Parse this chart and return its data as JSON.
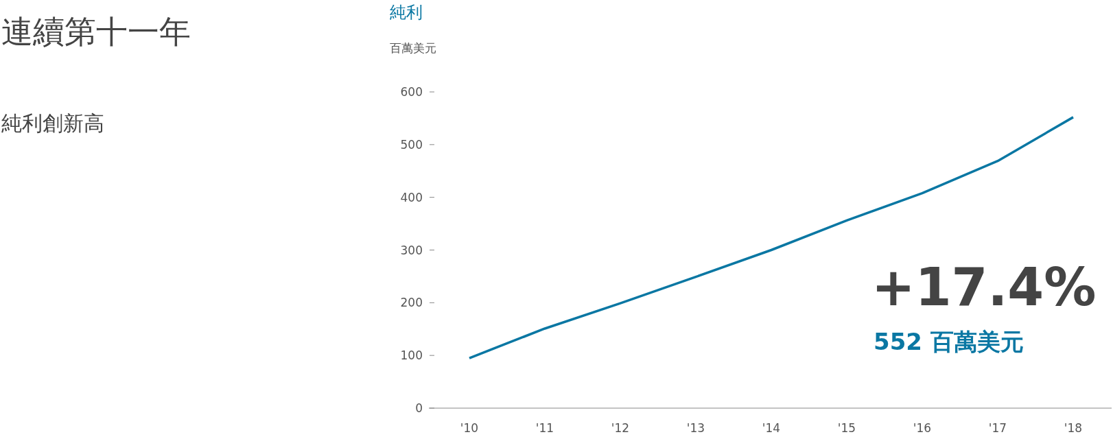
{
  "chart_data": {
    "type": "line",
    "title": "連續第十一年",
    "subtitle": "純利創新高",
    "ylabel": "百萬美元",
    "annotations": [
      "純利",
      "+17.4%",
      "552 百萬美元"
    ],
    "categories": [
      "'10",
      "'11",
      "'12",
      "'13",
      "'14",
      "'15",
      "'16",
      "'17",
      "'18"
    ],
    "series": [
      {
        "color": "#0a77a3",
        "values": [
          95,
          151,
          199,
          249,
          300,
          356,
          408,
          469,
          552
        ]
      }
    ],
    "ylim": [
      0,
      600
    ],
    "yticks": [
      0,
      100,
      200,
      300,
      400,
      500,
      600
    ],
    "grid": false,
    "marker": "none",
    "line_style": "solid"
  }
}
